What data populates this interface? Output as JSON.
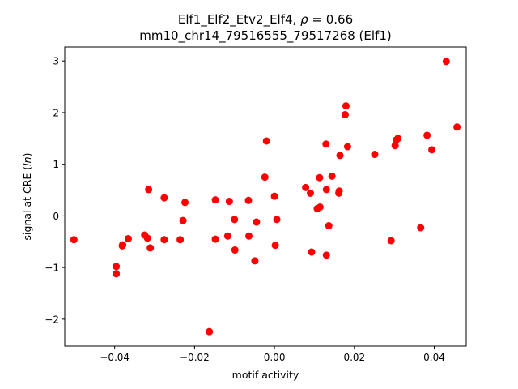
{
  "chart_data": {
    "type": "scatter",
    "title_line1_prefix": "Elf1_Elf2_Etv2_Elf4, ",
    "title_rho_symbol": "ρ",
    "title_rho_suffix": " = 0.66",
    "title_line2": "mm10_chr14_79516555_79517268 (Elf1)",
    "xlabel": "motif activity",
    "ylabel_prefix": "signal at CRE (",
    "ylabel_italic": "ln",
    "ylabel_suffix": ")",
    "xlim": [
      -0.0525,
      0.048
    ],
    "ylim": [
      -2.52,
      3.27
    ],
    "x_ticks": [
      -0.04,
      -0.02,
      0.0,
      0.02,
      0.04
    ],
    "x_tick_labels": [
      "−0.04",
      "−0.02",
      "0.00",
      "0.02",
      "0.04"
    ],
    "y_ticks": [
      -2,
      -1,
      0,
      1,
      2,
      3
    ],
    "y_tick_labels": [
      "−2",
      "−1",
      "0",
      "1",
      "2",
      "3"
    ],
    "grid": false,
    "marker_color": "#ff0000",
    "points": [
      {
        "x": -0.0502,
        "y": -0.46
      },
      {
        "x": -0.0396,
        "y": -0.98
      },
      {
        "x": -0.0396,
        "y": -1.12
      },
      {
        "x": -0.0381,
        "y": -0.58
      },
      {
        "x": -0.038,
        "y": -0.56
      },
      {
        "x": -0.0366,
        "y": -0.44
      },
      {
        "x": -0.0325,
        "y": -0.37
      },
      {
        "x": -0.0318,
        "y": -0.43
      },
      {
        "x": -0.0315,
        "y": 0.51
      },
      {
        "x": -0.0311,
        "y": -0.62
      },
      {
        "x": -0.0276,
        "y": 0.35
      },
      {
        "x": -0.0276,
        "y": -0.46
      },
      {
        "x": -0.0236,
        "y": -0.46
      },
      {
        "x": -0.0229,
        "y": -0.09
      },
      {
        "x": -0.0224,
        "y": 0.26
      },
      {
        "x": -0.0163,
        "y": -2.24
      },
      {
        "x": -0.0148,
        "y": 0.31
      },
      {
        "x": -0.0148,
        "y": -0.45
      },
      {
        "x": -0.0117,
        "y": -0.39
      },
      {
        "x": -0.0113,
        "y": 0.28
      },
      {
        "x": -0.01,
        "y": -0.07
      },
      {
        "x": -0.0099,
        "y": -0.66
      },
      {
        "x": -0.0065,
        "y": 0.3
      },
      {
        "x": -0.0064,
        "y": -0.39
      },
      {
        "x": -0.0049,
        "y": -0.87
      },
      {
        "x": -0.0045,
        "y": -0.12
      },
      {
        "x": -0.0024,
        "y": 0.75
      },
      {
        "x": -0.002,
        "y": 1.45
      },
      {
        "x": 0.0,
        "y": 0.38
      },
      {
        "x": 0.0002,
        "y": -0.57
      },
      {
        "x": 0.0006,
        "y": -0.07
      },
      {
        "x": 0.0078,
        "y": 0.55
      },
      {
        "x": 0.009,
        "y": 0.44
      },
      {
        "x": 0.0093,
        "y": -0.7
      },
      {
        "x": 0.0107,
        "y": 0.14
      },
      {
        "x": 0.0113,
        "y": 0.74
      },
      {
        "x": 0.0114,
        "y": 0.17
      },
      {
        "x": 0.0129,
        "y": 1.39
      },
      {
        "x": 0.013,
        "y": 0.51
      },
      {
        "x": 0.013,
        "y": -0.76
      },
      {
        "x": 0.0136,
        "y": -0.19
      },
      {
        "x": 0.0144,
        "y": 0.77
      },
      {
        "x": 0.0161,
        "y": 0.44
      },
      {
        "x": 0.0162,
        "y": 0.48
      },
      {
        "x": 0.0164,
        "y": 1.17
      },
      {
        "x": 0.0177,
        "y": 1.96
      },
      {
        "x": 0.0179,
        "y": 2.13
      },
      {
        "x": 0.0183,
        "y": 1.34
      },
      {
        "x": 0.0251,
        "y": 1.19
      },
      {
        "x": 0.0292,
        "y": -0.48
      },
      {
        "x": 0.0302,
        "y": 1.36
      },
      {
        "x": 0.0305,
        "y": 1.47
      },
      {
        "x": 0.0309,
        "y": 1.5
      },
      {
        "x": 0.0366,
        "y": -0.23
      },
      {
        "x": 0.0382,
        "y": 1.56
      },
      {
        "x": 0.0394,
        "y": 1.28
      },
      {
        "x": 0.043,
        "y": 2.99
      },
      {
        "x": 0.0457,
        "y": 1.72
      }
    ]
  }
}
